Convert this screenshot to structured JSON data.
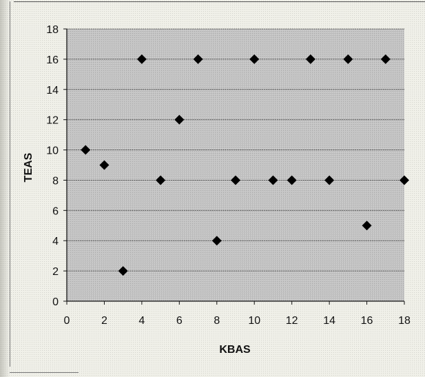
{
  "chart_data": {
    "type": "scatter",
    "title": "",
    "xlabel": "KBAS",
    "ylabel": "TEAS",
    "xlim": [
      0,
      18
    ],
    "ylim": [
      0,
      18
    ],
    "xticks": [
      0,
      2,
      4,
      6,
      8,
      10,
      12,
      14,
      16,
      18
    ],
    "yticks": [
      0,
      2,
      4,
      6,
      8,
      10,
      12,
      14,
      16,
      18
    ],
    "grid": "horizontal",
    "marker": "diamond",
    "colors": {
      "marker": "#000000",
      "plot_bg": "#bdbdbd",
      "gridline": "#000000"
    },
    "series": [
      {
        "points": [
          [
            1,
            10
          ],
          [
            2,
            9
          ],
          [
            3,
            2
          ],
          [
            4,
            16
          ],
          [
            5,
            8
          ],
          [
            6,
            12
          ],
          [
            7,
            16
          ],
          [
            8,
            4
          ],
          [
            9,
            8
          ],
          [
            10,
            16
          ],
          [
            11,
            8
          ],
          [
            12,
            8
          ],
          [
            13,
            16
          ],
          [
            14,
            8
          ],
          [
            15,
            16
          ],
          [
            16,
            5
          ],
          [
            17,
            16
          ],
          [
            18,
            8
          ]
        ]
      }
    ]
  }
}
